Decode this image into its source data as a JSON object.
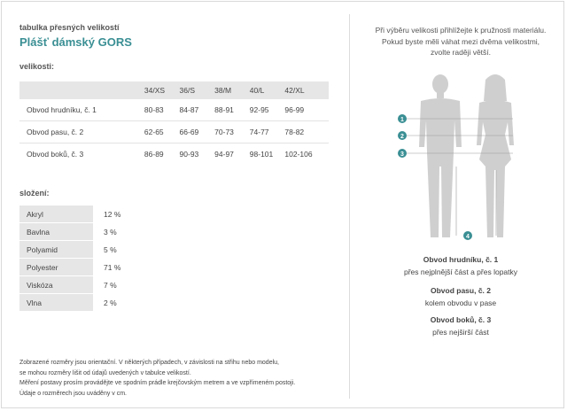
{
  "header": {
    "subtitle": "tabulka přesných velikostí",
    "title": "Plášť dámský GORS"
  },
  "sizes": {
    "label": "velikosti:",
    "columns": [
      "",
      "34/XS",
      "36/S",
      "38/M",
      "40/L",
      "42/XL"
    ],
    "rows": [
      {
        "name": "Obvod hrudníku, č. 1",
        "values": [
          "80-83",
          "84-87",
          "88-91",
          "92-95",
          "96-99"
        ]
      },
      {
        "name": "Obvod pasu, č. 2",
        "values": [
          "62-65",
          "66-69",
          "70-73",
          "74-77",
          "78-82"
        ]
      },
      {
        "name": "Obvod boků, č. 3",
        "values": [
          "86-89",
          "90-93",
          "94-97",
          "98-101",
          "102-106"
        ]
      }
    ]
  },
  "composition": {
    "label": "složení:",
    "items": [
      {
        "material": "Akryl",
        "percent": "12 %"
      },
      {
        "material": "Bavlna",
        "percent": "3 %"
      },
      {
        "material": "Polyamid",
        "percent": "5 %"
      },
      {
        "material": "Polyester",
        "percent": "71 %"
      },
      {
        "material": "Viskóza",
        "percent": "7 %"
      },
      {
        "material": "Vlna",
        "percent": "2 %"
      }
    ]
  },
  "note": {
    "lines": [
      "Zobrazené rozměry jsou orientační. V některých případech, v závislosti na střihu nebo modelu,",
      "se mohou rozměry lišit od údajů uvedených v tabulce velikostí.",
      "Měření postavy prosím provádějte ve spodním prádle krejčovským metrem a ve vzpřímeném postoji.",
      "Údaje o rozměrech jsou uváděny v cm."
    ]
  },
  "guide": {
    "intro": [
      "Při výběru velikosti přihlížejte k pružnosti materiálu.",
      "Pokud byste měli váhat mezi dvěma velikostmi,",
      "zvolte raději větší."
    ],
    "markers": [
      "1",
      "2",
      "3",
      "4"
    ],
    "accent_color": "#3a8f94",
    "legend": [
      {
        "heading": "Obvod hrudníku, č. 1",
        "text": "přes nejplnější část a přes lopatky"
      },
      {
        "heading": "Obvod pasu, č. 2",
        "text": "kolem obvodu v pase"
      },
      {
        "heading": "Obvod boků, č. 3",
        "text": "přes nejširší část"
      }
    ]
  }
}
